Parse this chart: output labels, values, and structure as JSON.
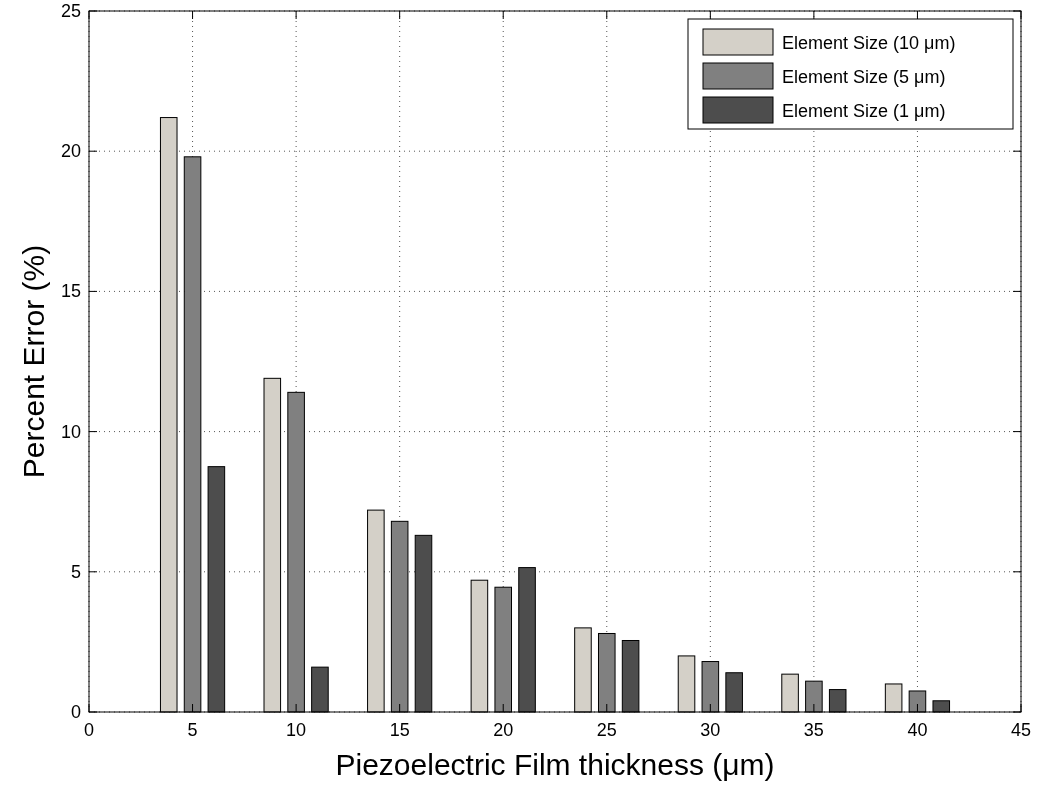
{
  "chart_data": {
    "type": "bar",
    "xlabel": "Piezoelectric Film thickness (μm)",
    "ylabel": "Percent Error (%)",
    "x": [
      5,
      10,
      15,
      20,
      25,
      30,
      35,
      40
    ],
    "series": [
      {
        "name": "Element Size (10 μm)",
        "color": "#d4d0c8",
        "values": [
          21.2,
          11.9,
          7.2,
          4.7,
          3.0,
          2.0,
          1.35,
          1.0
        ]
      },
      {
        "name": "Element Size (5 μm)",
        "color": "#808080",
        "values": [
          19.8,
          11.4,
          6.8,
          4.45,
          2.8,
          1.8,
          1.1,
          0.75
        ]
      },
      {
        "name": "Element Size (1 μm)",
        "color": "#4d4d4d",
        "values": [
          8.75,
          1.6,
          6.3,
          5.15,
          2.55,
          1.4,
          0.8,
          0.4
        ]
      }
    ],
    "xlim": [
      0,
      45
    ],
    "xticks": [
      0,
      5,
      10,
      15,
      20,
      25,
      30,
      35,
      40,
      45
    ],
    "ylim": [
      0,
      25
    ],
    "yticks": [
      0,
      5,
      10,
      15,
      20,
      25
    ],
    "grid": true,
    "legend": "top right"
  }
}
